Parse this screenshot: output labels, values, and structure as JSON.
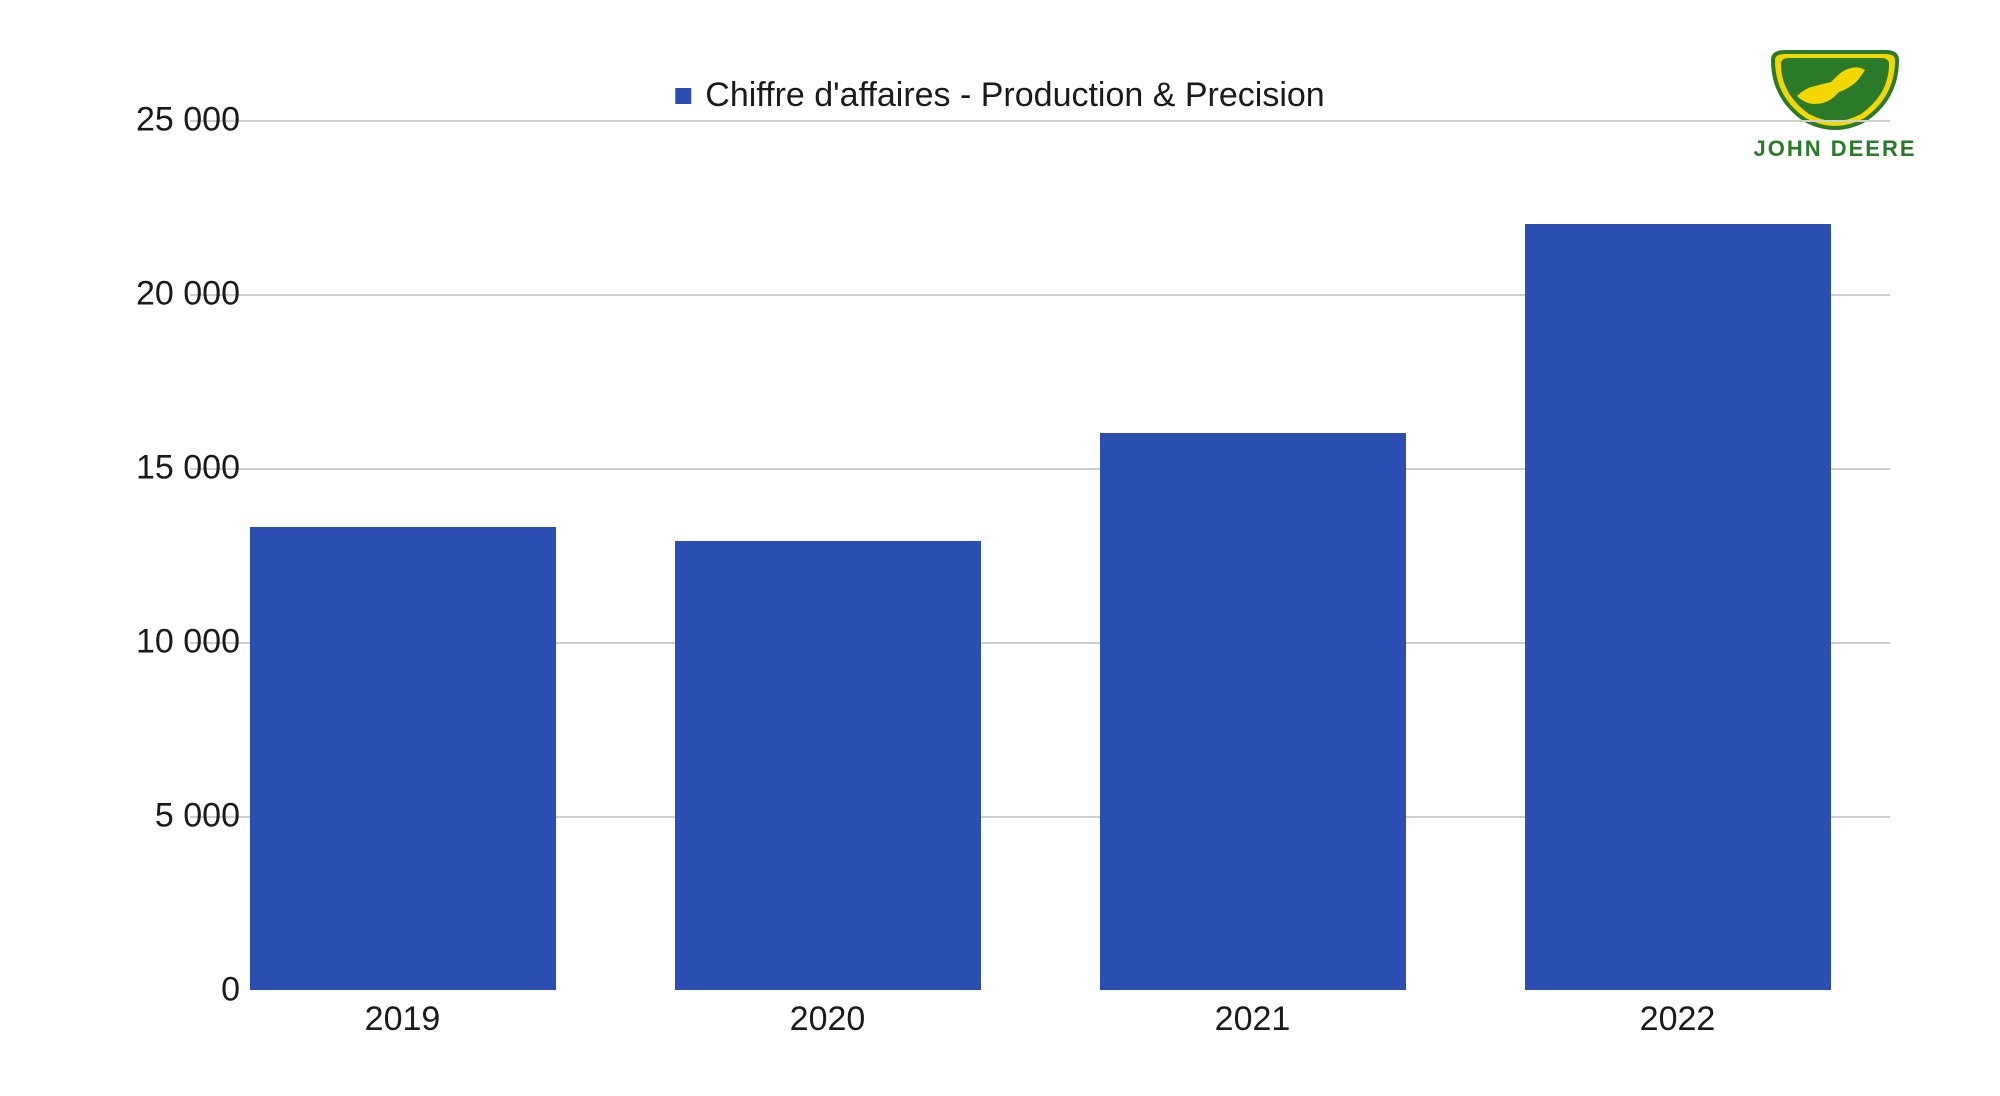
{
  "chart": {
    "type": "bar",
    "legend_label": "Chiffre d'affaires - Production & Precision",
    "categories": [
      "2019",
      "2020",
      "2021",
      "2022"
    ],
    "values": [
      13300,
      12900,
      16000,
      22000
    ],
    "bar_color": "#2b4eb3",
    "legend_marker_color": "#2b4eb3",
    "ylim": [
      0,
      25000
    ],
    "ytick_step": 5000,
    "ytick_labels": [
      "0",
      "5 000",
      "10 000",
      "15 000",
      "20 000",
      "25 000"
    ],
    "grid_color": "#d0d0d0",
    "background_color": "#ffffff",
    "bar_width_ratio": 0.72,
    "title_fontsize": 34,
    "axis_fontsize": 34,
    "text_color": "#1a1a1a"
  },
  "logo": {
    "brand_text": "JOHN DEERE",
    "shield_outer": "#f5d700",
    "shield_inner": "#2a7a2a",
    "shield_border": "#2a7a2a",
    "text_color": "#2a7a2a"
  }
}
